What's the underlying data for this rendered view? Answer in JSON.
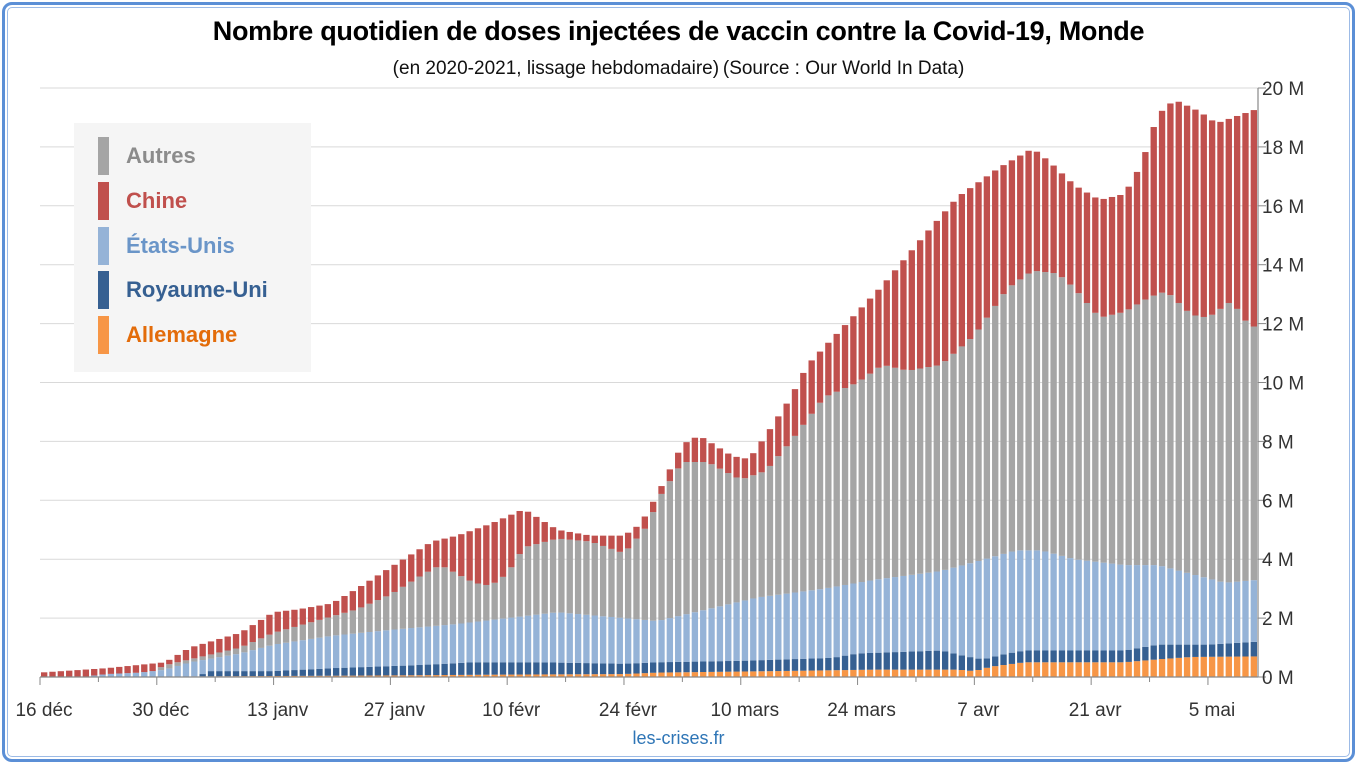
{
  "title": "Nombre quotidien de doses injectées de vaccin contre la Covid-19, Monde",
  "subtitle": "(en 2020-2021, lissage hebdomadaire) (Source : Our World In Data)",
  "footer": "les-crises.fr",
  "colors": {
    "Autres": "#a5a5a5",
    "Chine": "#c0504d",
    "Etats-Unis": "#95b3d7",
    "Royaume-Uni": "#366092",
    "Allemagne": "#f79646",
    "legend_text": {
      "Autres": "#8c8c8c",
      "Chine": "#c0504d",
      "Etats-Unis": "#6a95c8",
      "Royaume-Uni": "#366092",
      "Allemagne": "#e36c0a"
    },
    "frame": "#5b8fd6",
    "grid": "#d9d9d9"
  },
  "chart_data": {
    "type": "bar",
    "stacked": true,
    "title": "Nombre quotidien de doses injectées de vaccin contre la Covid-19, Monde",
    "subtitle": "(en 2020-2021, lissage hebdomadaire)(Source : Our World In Data)",
    "xlabel": "",
    "ylabel": "",
    "x_unit": "days since 16 déc 2020",
    "n_days": 146,
    "x_ticks": [
      {
        "day": 0,
        "label": "16 déc"
      },
      {
        "day": 14,
        "label": "30 déc"
      },
      {
        "day": 28,
        "label": "13 janv"
      },
      {
        "day": 42,
        "label": "27 janv"
      },
      {
        "day": 56,
        "label": "10 févr"
      },
      {
        "day": 70,
        "label": "24 févr"
      },
      {
        "day": 84,
        "label": "10 mars"
      },
      {
        "day": 98,
        "label": "24 mars"
      },
      {
        "day": 112,
        "label": "7 avr"
      },
      {
        "day": 126,
        "label": "21 avr"
      },
      {
        "day": 140,
        "label": "5 mai"
      }
    ],
    "y_ticks": [
      "0 M",
      "2 M",
      "4 M",
      "6 M",
      "8 M",
      "10 M",
      "12 M",
      "14 M",
      "16 M",
      "18 M",
      "20 M"
    ],
    "y_tick_values": [
      0,
      2,
      4,
      6,
      8,
      10,
      12,
      14,
      16,
      18,
      20
    ],
    "ylim": [
      0,
      20
    ],
    "y_axis_side": "right",
    "grid": true,
    "legend_position": "top-left",
    "legend": [
      "Autres",
      "Chine",
      "États-Unis",
      "Royaume-Uni",
      "Allemagne"
    ],
    "value_unit": "millions of doses per day",
    "series_note": "values are cumulative stack tops (millions) at sampled days [day, value]; bars interpolate daily",
    "stack_order": [
      "Allemagne",
      "Royaume-Uni",
      "États-Unis",
      "Autres",
      "Chine"
    ],
    "series": [
      {
        "name": "Allemagne",
        "key": "Allemagne",
        "cumulative_top": [
          [
            0,
            0
          ],
          [
            17,
            0
          ],
          [
            18,
            0.02
          ],
          [
            40,
            0.05
          ],
          [
            55,
            0.08
          ],
          [
            70,
            0.1
          ],
          [
            74,
            0.15
          ],
          [
            88,
            0.2
          ],
          [
            100,
            0.25
          ],
          [
            110,
            0.25
          ],
          [
            112,
            0.2
          ],
          [
            114,
            0.35
          ],
          [
            118,
            0.5
          ],
          [
            130,
            0.5
          ],
          [
            134,
            0.6
          ],
          [
            138,
            0.68
          ],
          [
            146,
            0.7
          ]
        ]
      },
      {
        "name": "Royaume-Uni",
        "key": "Royaume-Uni",
        "cumulative_top": [
          [
            0,
            0
          ],
          [
            19,
            0
          ],
          [
            20,
            0.2
          ],
          [
            28,
            0.2
          ],
          [
            35,
            0.3
          ],
          [
            45,
            0.4
          ],
          [
            52,
            0.5
          ],
          [
            60,
            0.5
          ],
          [
            70,
            0.45
          ],
          [
            74,
            0.5
          ],
          [
            84,
            0.55
          ],
          [
            95,
            0.65
          ],
          [
            98,
            0.8
          ],
          [
            108,
            0.9
          ],
          [
            111,
            0.7
          ],
          [
            113,
            0.6
          ],
          [
            116,
            0.8
          ],
          [
            118,
            0.9
          ],
          [
            130,
            0.9
          ],
          [
            134,
            1.1
          ],
          [
            140,
            1.1
          ],
          [
            146,
            1.2
          ]
        ]
      },
      {
        "name": "États-Unis",
        "key": "Etats-Unis",
        "cumulative_top": [
          [
            0,
            0
          ],
          [
            5,
            0
          ],
          [
            8,
            0.1
          ],
          [
            12,
            0.15
          ],
          [
            15,
            0.25
          ],
          [
            18,
            0.5
          ],
          [
            24,
            0.8
          ],
          [
            28,
            1.1
          ],
          [
            35,
            1.4
          ],
          [
            42,
            1.6
          ],
          [
            50,
            1.8
          ],
          [
            56,
            2.0
          ],
          [
            62,
            2.2
          ],
          [
            70,
            2.0
          ],
          [
            74,
            1.9
          ],
          [
            80,
            2.3
          ],
          [
            86,
            2.7
          ],
          [
            94,
            3.0
          ],
          [
            100,
            3.3
          ],
          [
            108,
            3.6
          ],
          [
            112,
            3.9
          ],
          [
            117,
            4.3
          ],
          [
            120,
            4.3
          ],
          [
            124,
            4.0
          ],
          [
            130,
            3.8
          ],
          [
            134,
            3.8
          ],
          [
            138,
            3.5
          ],
          [
            142,
            3.2
          ],
          [
            146,
            3.3
          ]
        ]
      },
      {
        "name": "Autres",
        "key": "Autres",
        "cumulative_top": [
          [
            0,
            0
          ],
          [
            12,
            0
          ],
          [
            15,
            0.4
          ],
          [
            18,
            0.6
          ],
          [
            24,
            1.0
          ],
          [
            28,
            1.5
          ],
          [
            33,
            1.9
          ],
          [
            38,
            2.3
          ],
          [
            42,
            2.8
          ],
          [
            46,
            3.5
          ],
          [
            48,
            3.8
          ],
          [
            52,
            3.2
          ],
          [
            54,
            3.1
          ],
          [
            56,
            3.5
          ],
          [
            58,
            4.4
          ],
          [
            62,
            4.7
          ],
          [
            66,
            4.6
          ],
          [
            70,
            4.2
          ],
          [
            73,
            5.2
          ],
          [
            74,
            6.0
          ],
          [
            77,
            7.3
          ],
          [
            80,
            7.3
          ],
          [
            84,
            6.7
          ],
          [
            87,
            7.0
          ],
          [
            90,
            8.0
          ],
          [
            94,
            9.5
          ],
          [
            98,
            10.0
          ],
          [
            101,
            10.6
          ],
          [
            104,
            10.4
          ],
          [
            108,
            10.6
          ],
          [
            112,
            11.6
          ],
          [
            116,
            13.2
          ],
          [
            119,
            13.8
          ],
          [
            122,
            13.7
          ],
          [
            124,
            13.2
          ],
          [
            127,
            12.2
          ],
          [
            130,
            12.4
          ],
          [
            133,
            12.9
          ],
          [
            135,
            13.1
          ],
          [
            138,
            12.3
          ],
          [
            140,
            12.2
          ],
          [
            142,
            12.6
          ],
          [
            143,
            12.8
          ],
          [
            144,
            12.2
          ],
          [
            146,
            11.8
          ]
        ]
      },
      {
        "name": "Chine",
        "key": "Chine",
        "cumulative_top": [
          [
            0,
            0.15
          ],
          [
            8,
            0.3
          ],
          [
            15,
            0.5
          ],
          [
            18,
            1.0
          ],
          [
            24,
            1.5
          ],
          [
            28,
            2.2
          ],
          [
            31,
            2.3
          ],
          [
            35,
            2.5
          ],
          [
            38,
            3.0
          ],
          [
            43,
            3.9
          ],
          [
            47,
            4.6
          ],
          [
            50,
            4.8
          ],
          [
            54,
            5.2
          ],
          [
            58,
            5.7
          ],
          [
            62,
            5.0
          ],
          [
            66,
            4.8
          ],
          [
            70,
            4.8
          ],
          [
            72,
            5.2
          ],
          [
            74,
            6.2
          ],
          [
            77,
            7.9
          ],
          [
            79,
            8.2
          ],
          [
            83,
            7.5
          ],
          [
            85,
            7.4
          ],
          [
            87,
            8.2
          ],
          [
            90,
            9.5
          ],
          [
            92,
            10.6
          ],
          [
            96,
            11.8
          ],
          [
            101,
            13.3
          ],
          [
            106,
            15.0
          ],
          [
            110,
            16.3
          ],
          [
            115,
            17.3
          ],
          [
            119,
            17.95
          ],
          [
            121,
            17.5
          ],
          [
            124,
            16.7
          ],
          [
            127,
            16.2
          ],
          [
            130,
            16.4
          ],
          [
            132,
            17.4
          ],
          [
            134,
            19.1
          ],
          [
            136,
            19.6
          ],
          [
            139,
            19.2
          ],
          [
            141,
            18.8
          ],
          [
            143,
            19.0
          ],
          [
            146,
            19.3
          ]
        ]
      }
    ]
  }
}
